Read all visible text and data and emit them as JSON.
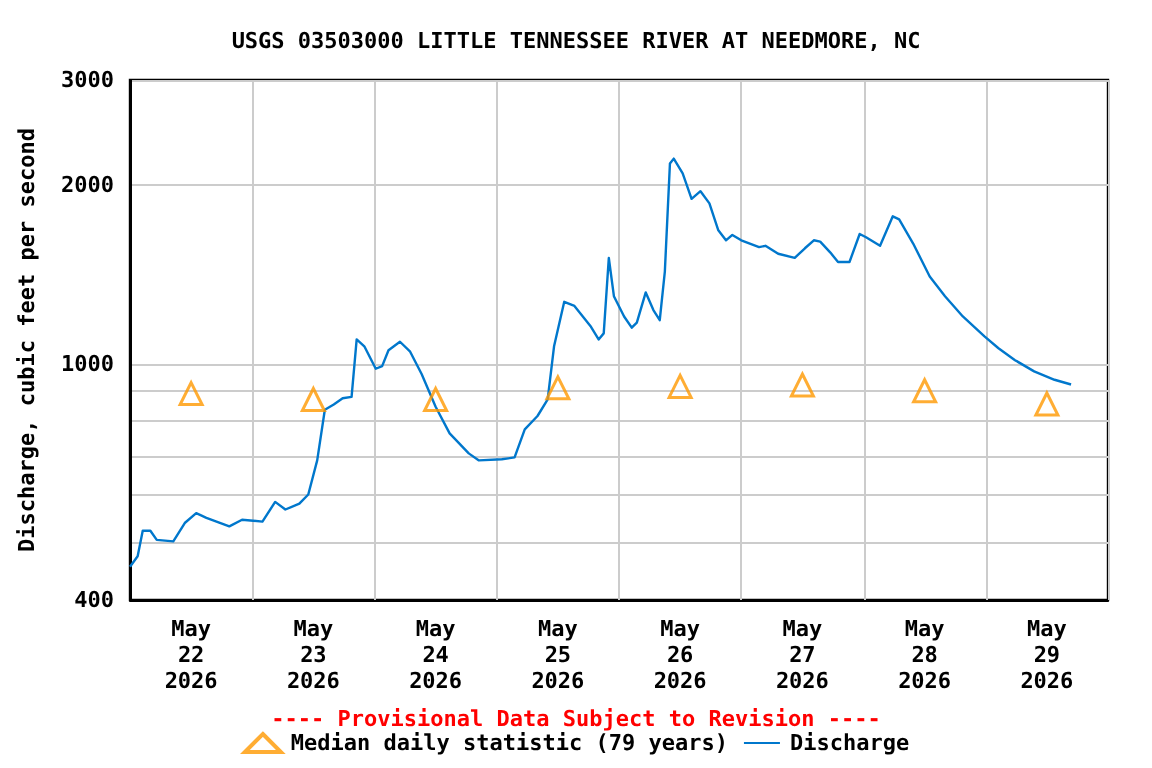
{
  "chart_data": {
    "type": "line",
    "title": "USGS 03503000 LITTLE TENNESSEE RIVER AT NEEDMORE, NC",
    "ylabel": "Discharge, cubic feet per second",
    "annotations": [
      "---- Provisional Data Subject to Revision ----"
    ],
    "xlim": [
      "2026-05-22T00:00",
      "2026-05-30T00:00"
    ],
    "xticks": [
      {
        "value": "2026-05-22T00:00",
        "label": null
      },
      {
        "value": "2026-05-22T12:00",
        "label": "May\n22\n2026"
      },
      {
        "value": "2026-05-23T00:00",
        "label": null
      },
      {
        "value": "2026-05-23T12:00",
        "label": "May\n23\n2026"
      },
      {
        "value": "2026-05-24T00:00",
        "label": null
      },
      {
        "value": "2026-05-24T12:00",
        "label": "May\n24\n2026"
      },
      {
        "value": "2026-05-25T00:00",
        "label": null
      },
      {
        "value": "2026-05-25T12:00",
        "label": "May\n25\n2026"
      },
      {
        "value": "2026-05-26T00:00",
        "label": null
      },
      {
        "value": "2026-05-26T12:00",
        "label": "May\n26\n2026"
      },
      {
        "value": "2026-05-27T00:00",
        "label": null
      },
      {
        "value": "2026-05-27T12:00",
        "label": "May\n27\n2026"
      },
      {
        "value": "2026-05-28T00:00",
        "label": null
      },
      {
        "value": "2026-05-28T12:00",
        "label": "May\n28\n2026"
      },
      {
        "value": "2026-05-29T00:00",
        "label": null
      },
      {
        "value": "2026-05-29T12:00",
        "label": "May\n29\n2026"
      },
      {
        "value": "2026-05-30T00:00",
        "label": null
      }
    ],
    "ylim": [
      400,
      3000
    ],
    "yticks": [
      400,
      {
        "value": 500,
        "label": null
      },
      {
        "value": 600,
        "label": null
      },
      {
        "value": 700,
        "label": null
      },
      {
        "value": 800,
        "label": null
      },
      {
        "value": 900,
        "label": null
      },
      1000,
      2000,
      3000
    ],
    "log": "y",
    "grid": true,
    "legend": "bottom",
    "series": [
      {
        "name": "Median daily statistic (79 years)",
        "type": "scatter",
        "marker": "triangle",
        "color": "#ff9900",
        "x": [
          "2026-05-22T12:00",
          "2026-05-23T12:00",
          "2026-05-24T12:00",
          "2026-05-25T12:00",
          "2026-05-26T12:00",
          "2026-05-27T12:00",
          "2026-05-28T12:00",
          "2026-05-29T12:00"
        ],
        "values": [
          890,
          870,
          870,
          910,
          915,
          920,
          900,
          855
        ]
      },
      {
        "name": "Discharge",
        "marker": "none",
        "color": "#0077cc",
        "x": [
          "2026-05-22T00:00",
          "2026-05-22T01:30",
          "2026-05-22T02:30",
          "2026-05-22T04:00",
          "2026-05-22T05:15",
          "2026-05-22T08:30",
          "2026-05-22T10:45",
          "2026-05-22T13:00",
          "2026-05-22T15:00",
          "2026-05-22T19:30",
          "2026-05-22T22:00",
          "2026-05-23T02:00",
          "2026-05-23T04:30",
          "2026-05-23T06:30",
          "2026-05-23T09:15",
          "2026-05-23T11:00",
          "2026-05-23T12:45",
          "2026-05-23T14:15",
          "2026-05-23T16:00",
          "2026-05-23T17:45",
          "2026-05-23T19:30",
          "2026-05-23T20:30",
          "2026-05-23T22:00",
          "2026-05-24T00:15",
          "2026-05-24T01:30",
          "2026-05-24T02:45",
          "2026-05-24T05:00",
          "2026-05-24T07:00",
          "2026-05-24T09:15",
          "2026-05-24T12:00",
          "2026-05-24T14:45",
          "2026-05-24T18:30",
          "2026-05-24T20:30",
          "2026-05-25T01:00",
          "2026-05-25T03:30",
          "2026-05-25T05:30",
          "2026-05-25T08:00",
          "2026-05-25T10:00",
          "2026-05-25T11:15",
          "2026-05-25T13:15",
          "2026-05-25T15:15",
          "2026-05-25T18:30",
          "2026-05-25T20:00",
          "2026-05-25T21:00",
          "2026-05-25T22:00",
          "2026-05-25T23:00",
          "2026-05-26T01:00",
          "2026-05-26T02:30",
          "2026-05-26T03:30",
          "2026-05-26T05:15",
          "2026-05-26T06:45",
          "2026-05-26T08:00",
          "2026-05-26T09:00",
          "2026-05-26T10:00",
          "2026-05-26T10:45",
          "2026-05-26T12:30",
          "2026-05-26T14:15",
          "2026-05-26T16:00",
          "2026-05-26T17:45",
          "2026-05-26T19:30",
          "2026-05-26T21:00",
          "2026-05-26T22:15",
          "2026-05-27T00:00",
          "2026-05-27T03:30",
          "2026-05-27T04:45",
          "2026-05-27T07:15",
          "2026-05-27T10:30",
          "2026-05-27T12:30",
          "2026-05-27T14:15",
          "2026-05-27T15:30",
          "2026-05-27T17:30",
          "2026-05-27T19:00",
          "2026-05-27T21:15",
          "2026-05-27T23:15",
          "2026-05-28T00:30",
          "2026-05-28T03:15",
          "2026-05-28T05:45",
          "2026-05-28T07:00",
          "2026-05-28T09:45",
          "2026-05-28T13:00",
          "2026-05-28T16:00",
          "2026-05-28T19:30",
          "2026-05-28T23:45",
          "2026-05-29T02:30",
          "2026-05-29T05:45",
          "2026-05-29T09:30",
          "2026-05-29T13:30",
          "2026-05-29T16:45"
        ],
        "values": [
          455,
          474,
          523,
          523,
          505,
          502,
          539,
          560,
          550,
          532,
          546,
          542,
          585,
          568,
          581,
          602,
          687,
          836,
          853,
          874,
          879,
          1098,
          1069,
          980,
          990,
          1053,
          1088,
          1047,
          960,
          846,
          763,
          706,
          687,
          690,
          695,
          775,
          816,
          870,
          1069,
          1270,
          1250,
          1153,
          1098,
          1124,
          1505,
          1298,
          1200,
          1149,
          1172,
          1317,
          1230,
          1183,
          1428,
          2170,
          2212,
          2090,
          1893,
          1950,
          1860,
          1676,
          1612,
          1646,
          1612,
          1570,
          1578,
          1530,
          1506,
          1563,
          1612,
          1604,
          1537,
          1482,
          1482,
          1652,
          1631,
          1578,
          1769,
          1748,
          1592,
          1401,
          1298,
          1200,
          1111,
          1061,
          1013,
          970,
          939,
          922
        ]
      }
    ]
  }
}
